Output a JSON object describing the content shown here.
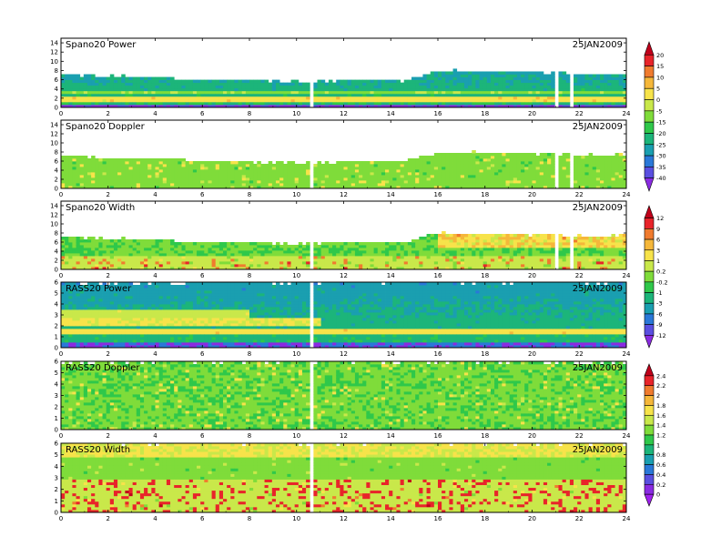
{
  "chart_data": [
    {
      "type": "heatmap",
      "title": "Spano20  Power",
      "date": "25JAN2009",
      "x_ticks": [
        0,
        2,
        4,
        6,
        8,
        10,
        12,
        14,
        16,
        18,
        20,
        22,
        24
      ],
      "xlim": [
        0,
        24
      ],
      "y_ticks": [
        0,
        2,
        4,
        6,
        8,
        10,
        12,
        14
      ],
      "ylim": [
        0,
        15
      ],
      "top_profile": {
        "x": [
          0,
          2,
          4,
          6,
          8,
          10,
          12,
          13.5,
          14.5,
          16,
          18,
          20,
          21,
          22,
          24
        ],
        "y": [
          7.2,
          6.8,
          6.6,
          6.1,
          5.8,
          5.6,
          5.9,
          6.2,
          5.8,
          8,
          8,
          7.6,
          7.6,
          7.4,
          7.4
        ]
      },
      "gaps": [
        10.7,
        21,
        21.7
      ],
      "colormap": "power",
      "colorbar_group": 0
    },
    {
      "type": "heatmap",
      "title": "Spano20  Doppler",
      "date": "25JAN2009",
      "x_ticks": [
        0,
        2,
        4,
        6,
        8,
        10,
        12,
        14,
        16,
        18,
        20,
        22,
        24
      ],
      "xlim": [
        0,
        24
      ],
      "y_ticks": [
        0,
        2,
        4,
        6,
        8,
        10,
        12,
        14
      ],
      "ylim": [
        0,
        15
      ],
      "top_profile": {
        "x": [
          0,
          2,
          4,
          6,
          8,
          10,
          12,
          13.5,
          14.5,
          16,
          18,
          20,
          21,
          22,
          24
        ],
        "y": [
          7.2,
          6.8,
          6.6,
          6.1,
          5.8,
          5.6,
          5.9,
          6.2,
          5.8,
          8,
          8,
          7.6,
          7.6,
          7.4,
          7.4
        ]
      },
      "gaps": [
        10.7,
        21,
        21.7
      ],
      "colormap": "doppler",
      "colorbar_group": 0
    },
    {
      "type": "heatmap",
      "title": "Spano20  Width",
      "date": "25JAN2009",
      "x_ticks": [
        0,
        2,
        4,
        6,
        8,
        10,
        12,
        14,
        16,
        18,
        20,
        22,
        24
      ],
      "xlim": [
        0,
        24
      ],
      "y_ticks": [
        0,
        2,
        4,
        6,
        8,
        10,
        12,
        14
      ],
      "ylim": [
        0,
        15
      ],
      "top_profile": {
        "x": [
          0,
          2,
          4,
          6,
          8,
          10,
          12,
          13.5,
          14.5,
          16,
          18,
          20,
          21,
          22,
          24
        ],
        "y": [
          7.2,
          6.8,
          6.6,
          6.1,
          5.8,
          5.6,
          5.9,
          6.2,
          5.8,
          8,
          8,
          7.6,
          7.6,
          7.4,
          7.4
        ]
      },
      "gaps": [
        10.7,
        21,
        21.7
      ],
      "colormap": "width",
      "colorbar_group": 1
    },
    {
      "type": "heatmap",
      "title": "RASS20  Power",
      "date": "25JAN2009",
      "x_ticks": [
        0,
        2,
        4,
        6,
        8,
        10,
        12,
        14,
        16,
        18,
        20,
        22,
        24
      ],
      "xlim": [
        0,
        24
      ],
      "y_ticks": [
        0,
        1,
        2,
        3,
        4,
        5,
        6
      ],
      "ylim": [
        0,
        6
      ],
      "top_profile": {
        "x": [
          0,
          24
        ],
        "y": [
          6,
          6
        ]
      },
      "gaps": [
        10.7
      ],
      "colormap": "rpower",
      "colorbar_group": 1
    },
    {
      "type": "heatmap",
      "title": "RASS20  Doppler",
      "date": "25JAN2009",
      "x_ticks": [
        0,
        2,
        4,
        6,
        8,
        10,
        12,
        14,
        16,
        18,
        20,
        22,
        24
      ],
      "xlim": [
        0,
        24
      ],
      "y_ticks": [
        0,
        1,
        2,
        3,
        4,
        5,
        6
      ],
      "ylim": [
        0,
        6
      ],
      "top_profile": {
        "x": [
          0,
          24
        ],
        "y": [
          6,
          6
        ]
      },
      "gaps": [
        10.7
      ],
      "colormap": "rdoppler",
      "colorbar_group": 2
    },
    {
      "type": "heatmap",
      "title": "RASS20  Width",
      "date": "25JAN2009",
      "x_ticks": [
        0,
        2,
        4,
        6,
        8,
        10,
        12,
        14,
        16,
        18,
        20,
        22,
        24
      ],
      "xlim": [
        0,
        24
      ],
      "y_ticks": [
        0,
        1,
        2,
        3,
        4,
        5,
        6
      ],
      "ylim": [
        0,
        6
      ],
      "top_profile": {
        "x": [
          0,
          24
        ],
        "y": [
          6,
          6
        ]
      },
      "gaps": [
        10.7
      ],
      "colormap": "rwidth",
      "colorbar_group": 2
    }
  ],
  "colorbars": [
    {
      "labels": [
        "20",
        "15",
        "10",
        "5",
        "0",
        "-5",
        "-15",
        "-20",
        "-25",
        "-30",
        "-35",
        "-40"
      ],
      "colors": [
        "#c0001a",
        "#e8242a",
        "#f07b2e",
        "#f5b73a",
        "#f7e34a",
        "#c9e84a",
        "#7fdc3a",
        "#2fc84a",
        "#1cb57a",
        "#1a9fb0",
        "#2a78d8",
        "#5a4fe0",
        "#8a2be2"
      ]
    },
    {
      "labels": [
        "12",
        "9",
        "6",
        "3",
        "1",
        "0.2",
        "-0.2",
        "-1",
        "-3",
        "-6",
        "-9",
        "-12"
      ],
      "colors": [
        "#c0001a",
        "#e8242a",
        "#f07b2e",
        "#f5b73a",
        "#f7e34a",
        "#c9e84a",
        "#7fdc3a",
        "#2fc84a",
        "#1cb57a",
        "#1a9fb0",
        "#2a78d8",
        "#5a4fe0",
        "#8a2be2"
      ]
    },
    {
      "labels": [
        "2.4",
        "2.2",
        "2",
        "1.8",
        "1.6",
        "1.4",
        "1.2",
        "1",
        "0.8",
        "0.6",
        "0.4",
        "0.2",
        "0"
      ],
      "colors": [
        "#c0001a",
        "#e8242a",
        "#f07b2e",
        "#f5b73a",
        "#f7e34a",
        "#c9e84a",
        "#7fdc3a",
        "#2fc84a",
        "#1cb57a",
        "#1a9fb0",
        "#2a78d8",
        "#5a4fe0",
        "#8a2be2",
        "#a020f0"
      ]
    }
  ]
}
